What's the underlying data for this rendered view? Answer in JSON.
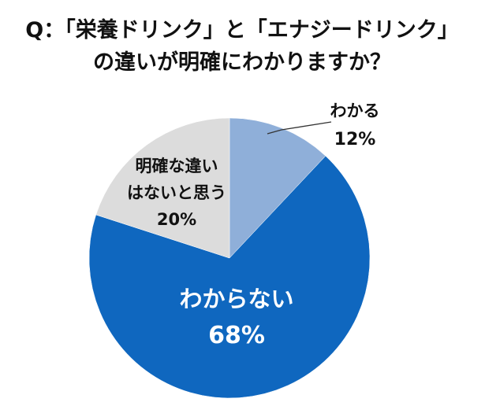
{
  "chart_data": {
    "type": "pie",
    "title_lines": [
      "Q：「栄養ドリンク」と「エナジードリンク」",
      "の違いが明確にわかりますか？"
    ],
    "start_angle_deg": 0,
    "direction": "clockwise",
    "slices": [
      {
        "label_lines": [
          "わかる"
        ],
        "value": 12,
        "value_label": "12%",
        "color": "#8fafd9"
      },
      {
        "label_lines": [
          "わからない"
        ],
        "value": 68,
        "value_label": "68%",
        "color": "#0f67bf"
      },
      {
        "label_lines": [
          "明確な違い",
          "はないと思う"
        ],
        "value": 20,
        "value_label": "20%",
        "color": "#dcdcdc"
      }
    ]
  }
}
